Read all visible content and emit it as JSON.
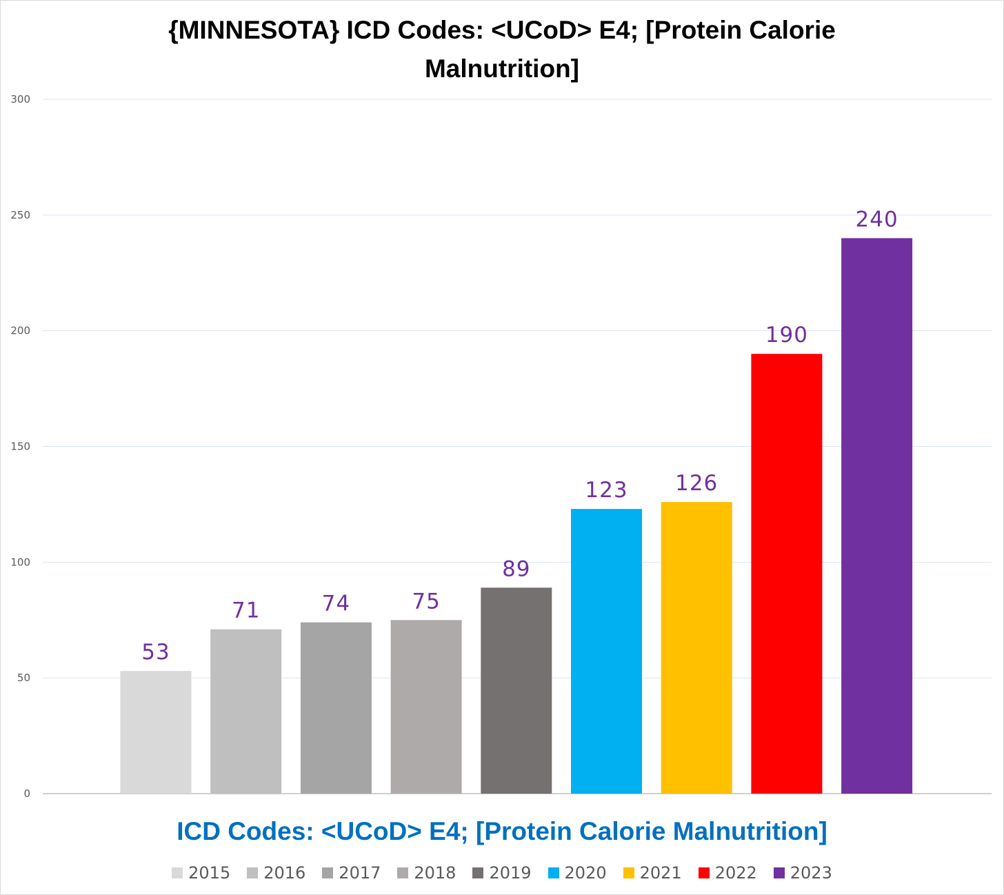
{
  "chart_data": {
    "type": "bar",
    "title": "{MINNESOTA}  ICD Codes: <UCoD> E4;  [Protein Calorie Malnutrition]",
    "xlabel": "ICD Codes: <UCoD> E4;  [Protein Calorie Malnutrition]",
    "ylabel": "",
    "ylim": [
      0,
      300
    ],
    "yticks": [
      0,
      50,
      100,
      150,
      200,
      250,
      300
    ],
    "grid": true,
    "legend_position": "bottom",
    "categories": [
      "2015",
      "2016",
      "2017",
      "2018",
      "2019",
      "2020",
      "2021",
      "2022",
      "2023"
    ],
    "values": [
      53,
      71,
      74,
      75,
      89,
      123,
      126,
      190,
      240
    ],
    "colors": [
      "#d9d9d9",
      "#bfbfbf",
      "#a5a5a5",
      "#aeaaaa",
      "#767171",
      "#00b0f0",
      "#ffc000",
      "#ff0000",
      "#7030a0"
    ],
    "data_label_color": "#7030a0"
  }
}
